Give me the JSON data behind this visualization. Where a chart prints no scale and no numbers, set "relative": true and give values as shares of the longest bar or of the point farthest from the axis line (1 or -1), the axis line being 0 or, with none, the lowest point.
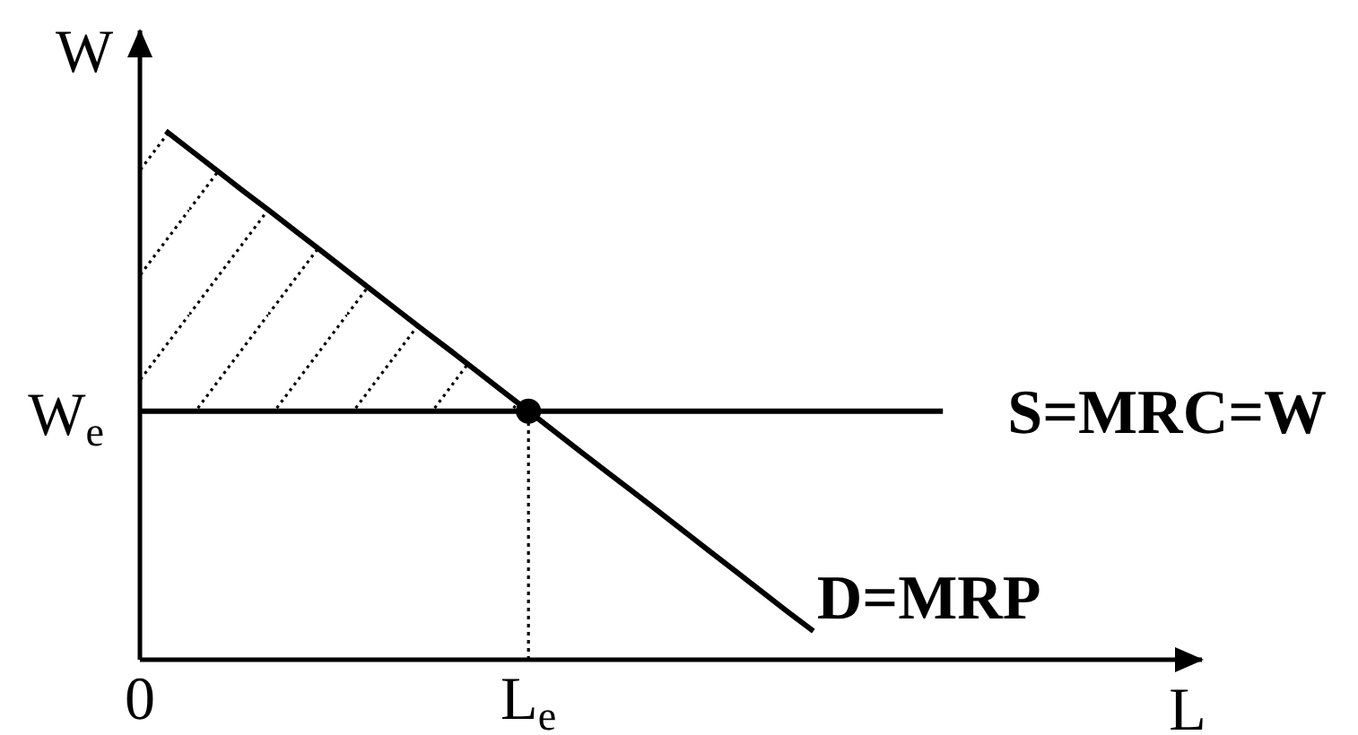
{
  "chart_data": {
    "type": "line",
    "relative": true,
    "xlabel": "L",
    "ylabel": "W",
    "tick_labels": "x",
    "categories": [
      "0",
      null,
      null,
      null,
      null,
      null,
      null,
      null,
      null,
      null,
      null,
      null,
      null,
      null,
      null,
      "L$_{e}$",
      null,
      null,
      null,
      null,
      null,
      null,
      null,
      null,
      null,
      null,
      null,
      null,
      null,
      null,
      null,
      null,
      null,
      null,
      null,
      null,
      null,
      null,
      null,
      null,
      null,
      null
    ],
    "annotations": [
      {
        "text": "W$_{e}$",
        "x": "0",
        "y": 0.47
      }
    ],
    "series": [
      {
        "name": "D=MRP",
        "color": "#000000",
        "values": [
          null,
          1,
          0.962,
          0.924,
          0.886,
          0.849,
          0.811,
          0.773,
          0.735,
          0.697,
          0.659,
          0.621,
          0.584,
          0.546,
          0.508,
          0.47,
          0.432,
          0.394,
          0.356,
          0.319,
          0.281,
          0.243,
          0.205,
          0.167,
          0.129,
          0.091,
          0.054,
          null,
          null,
          null,
          null,
          null,
          null,
          null,
          null,
          null,
          null,
          null,
          null,
          null,
          null,
          null
        ]
      },
      {
        "name": "S=MRC=W",
        "color": "#000000",
        "values": [
          0.47,
          0.47,
          0.47,
          0.47,
          0.47,
          0.47,
          0.47,
          0.47,
          0.47,
          0.47,
          0.47,
          0.47,
          0.47,
          0.47,
          0.47,
          0.47,
          0.47,
          0.47,
          0.47,
          0.47,
          0.47,
          0.47,
          0.47,
          0.47,
          0.47,
          0.47,
          0.47,
          0.47,
          0.47,
          0.47,
          0.47,
          0.47,
          null,
          null,
          null,
          null,
          null,
          null,
          null,
          null,
          null,
          null
        ],
        "lower": [
          0.47,
          0.47,
          0.47,
          0.47,
          0.47,
          0.47,
          0.47,
          0.47,
          0.47,
          0.47,
          0.47,
          0.47,
          0.47,
          0.47,
          0.47,
          0.47,
          null,
          null,
          null,
          null,
          null,
          null,
          null,
          null,
          null,
          null,
          null,
          null,
          null,
          null,
          null,
          null,
          null,
          null,
          null,
          null,
          null,
          null,
          null,
          null,
          null,
          null
        ],
        "upper": [
          1,
          1,
          0.962,
          0.924,
          0.886,
          0.849,
          0.811,
          0.773,
          0.735,
          0.697,
          0.659,
          0.621,
          0.584,
          0.546,
          0.508,
          0.47,
          null,
          null,
          null,
          null,
          null,
          null,
          null,
          null,
          null,
          null,
          null,
          null,
          null,
          null,
          null,
          null,
          null,
          null,
          null,
          null,
          null,
          null,
          null,
          null,
          null,
          null
        ]
      },
      {
        "color": "#000000",
        "line_style": "dotted",
        "x": [
          "L$_{e}$",
          "L$_{e}$"
        ],
        "values": [
          0,
          0.47
        ]
      },
      {
        "type": "scatter",
        "color": "#000000",
        "marker": "circle",
        "x": [
          "L$_{e}$"
        ],
        "values": [
          0.47
        ]
      }
    ]
  }
}
